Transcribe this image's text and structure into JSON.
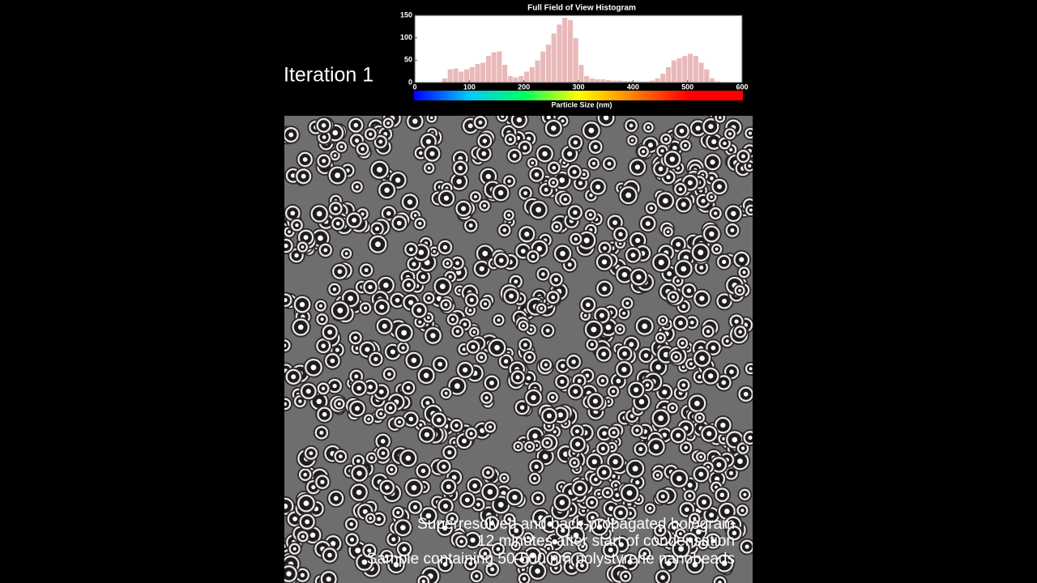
{
  "iteration_label": "Iteration 1",
  "caption": [
    "Superresolved and back-propagated hologram",
    "12 minutes after start of condensation",
    "Sample containing 50-500 nm polystyrene nanobeads"
  ],
  "chart_data": {
    "type": "histogram",
    "title": "Full Field of View Histogram",
    "x_label": "Particle Size (nm)",
    "bins": [
      0,
      10,
      20,
      30,
      40,
      50,
      60,
      70,
      80,
      90,
      100,
      110,
      120,
      130,
      140,
      150,
      160,
      170,
      180,
      190,
      200,
      210,
      220,
      230,
      240,
      250,
      260,
      270,
      280,
      290,
      300,
      310,
      320,
      330,
      340,
      350,
      360,
      370,
      380,
      390,
      400,
      410,
      420,
      430,
      440,
      450,
      460,
      470,
      480,
      490,
      500,
      510,
      520,
      530,
      540,
      550,
      560,
      570,
      580,
      590,
      600
    ],
    "values": [
      0,
      0,
      0,
      0,
      0,
      10,
      30,
      32,
      25,
      30,
      35,
      42,
      45,
      60,
      68,
      70,
      40,
      15,
      12,
      15,
      25,
      35,
      50,
      70,
      85,
      110,
      130,
      145,
      140,
      100,
      40,
      15,
      10,
      8,
      8,
      6,
      5,
      5,
      4,
      4,
      3,
      3,
      3,
      5,
      10,
      20,
      35,
      50,
      55,
      60,
      65,
      60,
      45,
      30,
      10,
      3,
      0,
      0,
      0,
      0
    ],
    "color": "#e9b9b9",
    "xlim": [
      0,
      600
    ],
    "xticks": [
      0,
      100,
      200,
      300,
      400,
      500,
      600
    ],
    "ylim": [
      0,
      150
    ],
    "yticks": [
      0,
      50,
      100,
      150
    ],
    "colorbar": [
      "#0000ff",
      "#00c8ff",
      "#00ff60",
      "#ffff00",
      "#ff8000",
      "#ff0000",
      "#ff0000"
    ]
  }
}
